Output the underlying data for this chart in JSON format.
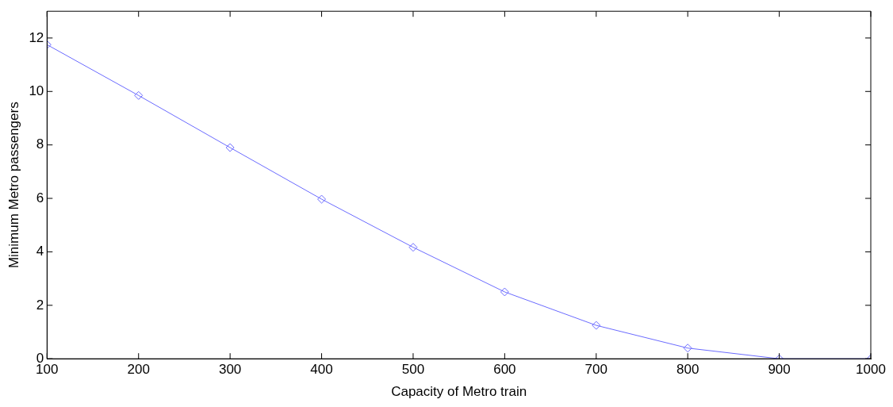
{
  "chart_data": {
    "type": "line",
    "xlabel": "Capacity of Metro train",
    "ylabel": "Minimum Metro passengers",
    "x": [
      100,
      200,
      300,
      400,
      500,
      600,
      700,
      800,
      900,
      1000
    ],
    "series": [
      {
        "color": "#6b6bff",
        "values": [
          11.75,
          9.85,
          7.9,
          5.97,
          4.17,
          2.5,
          1.25,
          0.4,
          0,
          0
        ]
      }
    ],
    "xlim": [
      100,
      1000
    ],
    "xticks": [
      100,
      200,
      300,
      400,
      500,
      600,
      700,
      800,
      900,
      1000
    ],
    "ylim": [
      0,
      13
    ],
    "yticks": [
      0,
      2,
      4,
      6,
      8,
      10,
      12
    ],
    "grid": false,
    "legend": false,
    "marker": "diamond",
    "line_style": "solid"
  }
}
